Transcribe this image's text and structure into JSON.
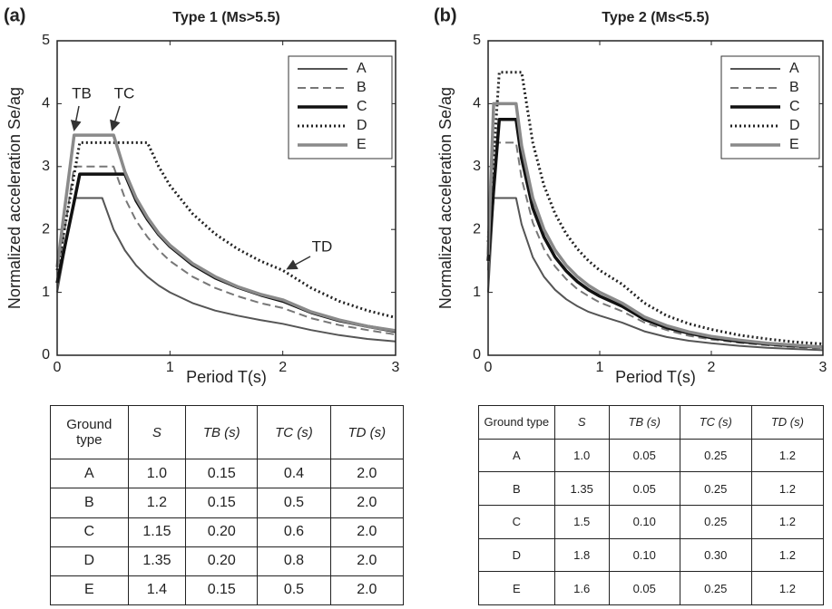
{
  "chart_data": [
    {
      "type": "line",
      "panel": "(a)",
      "title": "Type 1 (Ms>5.5)",
      "xlabel": "Period T(s)",
      "ylabel": "Normalized acceleration Se/ag",
      "x": [
        0,
        0.15,
        0.2,
        0.3,
        0.4,
        0.5,
        0.6,
        0.7,
        0.8,
        0.9,
        1.0,
        1.2,
        1.4,
        1.6,
        1.8,
        2.0,
        2.25,
        2.5,
        2.75,
        3.0
      ],
      "xlim": [
        0,
        3
      ],
      "xticks": [
        0,
        1,
        2,
        3
      ],
      "ylim": [
        0,
        5
      ],
      "yticks": [
        0,
        1,
        2,
        3,
        4,
        5
      ],
      "legend": "upper right",
      "annotations": [
        "TB",
        "TC",
        "TD"
      ],
      "series": [
        {
          "name": "A",
          "color": "#555555",
          "style": "solid",
          "values": [
            1.0,
            2.5,
            2.5,
            2.5,
            2.5,
            2.0,
            1.67,
            1.43,
            1.25,
            1.11,
            1.0,
            0.83,
            0.71,
            0.63,
            0.56,
            0.5,
            0.4,
            0.32,
            0.26,
            0.22
          ]
        },
        {
          "name": "B",
          "color": "#777777",
          "style": "dashed",
          "values": [
            1.2,
            3.0,
            3.0,
            3.0,
            3.0,
            3.0,
            2.5,
            2.14,
            1.88,
            1.67,
            1.5,
            1.25,
            1.07,
            0.94,
            0.83,
            0.75,
            0.59,
            0.48,
            0.4,
            0.33
          ]
        },
        {
          "name": "C",
          "color": "#111111",
          "style": "bold",
          "values": [
            1.15,
            2.44,
            2.88,
            2.88,
            2.88,
            2.88,
            2.88,
            2.46,
            2.16,
            1.92,
            1.73,
            1.44,
            1.23,
            1.08,
            0.96,
            0.86,
            0.68,
            0.55,
            0.46,
            0.38
          ]
        },
        {
          "name": "D",
          "color": "#222222",
          "style": "dotted",
          "values": [
            1.35,
            2.87,
            3.38,
            3.38,
            3.38,
            3.38,
            3.38,
            3.38,
            3.38,
            3.0,
            2.7,
            2.25,
            1.93,
            1.69,
            1.5,
            1.35,
            1.07,
            0.86,
            0.71,
            0.6
          ]
        },
        {
          "name": "E",
          "color": "#8a8a8a",
          "style": "bold",
          "values": [
            1.4,
            3.5,
            3.5,
            3.5,
            3.5,
            3.5,
            2.92,
            2.5,
            2.19,
            1.94,
            1.75,
            1.46,
            1.25,
            1.09,
            0.97,
            0.88,
            0.69,
            0.56,
            0.46,
            0.39
          ]
        }
      ]
    },
    {
      "type": "line",
      "panel": "(b)",
      "title": "Type 2 (Ms<5.5)",
      "xlabel": "Period T(s)",
      "ylabel": "Normalized acceleration Se/ag",
      "x": [
        0,
        0.05,
        0.1,
        0.25,
        0.3,
        0.4,
        0.5,
        0.6,
        0.7,
        0.8,
        0.9,
        1.0,
        1.2,
        1.4,
        1.6,
        1.8,
        2.0,
        2.25,
        2.5,
        2.75,
        3.0
      ],
      "xlim": [
        0,
        3
      ],
      "xticks": [
        0,
        1,
        2,
        3
      ],
      "ylim": [
        0,
        5
      ],
      "yticks": [
        0,
        1,
        2,
        3,
        4,
        5
      ],
      "legend": "upper right",
      "series": [
        {
          "name": "A",
          "color": "#555555",
          "style": "solid",
          "values": [
            1.0,
            2.5,
            2.5,
            2.5,
            2.08,
            1.56,
            1.25,
            1.04,
            0.89,
            0.78,
            0.69,
            0.63,
            0.52,
            0.38,
            0.29,
            0.23,
            0.19,
            0.15,
            0.12,
            0.1,
            0.08
          ]
        },
        {
          "name": "B",
          "color": "#777777",
          "style": "dashed",
          "values": [
            1.35,
            3.38,
            3.38,
            3.38,
            2.81,
            2.11,
            1.69,
            1.41,
            1.21,
            1.05,
            0.94,
            0.84,
            0.7,
            0.52,
            0.4,
            0.31,
            0.25,
            0.2,
            0.16,
            0.13,
            0.11
          ]
        },
        {
          "name": "C",
          "color": "#111111",
          "style": "bold",
          "values": [
            1.5,
            2.63,
            3.75,
            3.75,
            3.13,
            2.34,
            1.88,
            1.56,
            1.34,
            1.17,
            1.04,
            0.94,
            0.78,
            0.57,
            0.44,
            0.35,
            0.28,
            0.22,
            0.18,
            0.15,
            0.13
          ]
        },
        {
          "name": "D",
          "color": "#222222",
          "style": "dotted",
          "values": [
            1.8,
            3.15,
            4.5,
            4.5,
            4.5,
            3.38,
            2.7,
            2.25,
            1.93,
            1.69,
            1.5,
            1.35,
            1.13,
            0.83,
            0.63,
            0.5,
            0.41,
            0.32,
            0.26,
            0.21,
            0.18
          ]
        },
        {
          "name": "E",
          "color": "#8a8a8a",
          "style": "bold",
          "values": [
            1.6,
            4.0,
            4.0,
            4.0,
            3.33,
            2.5,
            2.0,
            1.67,
            1.43,
            1.25,
            1.11,
            1.0,
            0.83,
            0.61,
            0.47,
            0.37,
            0.3,
            0.24,
            0.19,
            0.16,
            0.13
          ]
        }
      ]
    }
  ],
  "tables": [
    {
      "header": [
        "Ground type",
        "S",
        "TB (s)",
        "TC (s)",
        "TD (s)"
      ],
      "rows": [
        [
          "A",
          "1.0",
          "0.15",
          "0.4",
          "2.0"
        ],
        [
          "B",
          "1.2",
          "0.15",
          "0.5",
          "2.0"
        ],
        [
          "C",
          "1.15",
          "0.20",
          "0.6",
          "2.0"
        ],
        [
          "D",
          "1.35",
          "0.20",
          "0.8",
          "2.0"
        ],
        [
          "E",
          "1.4",
          "0.15",
          "0.5",
          "2.0"
        ]
      ]
    },
    {
      "header": [
        "Ground type",
        "S",
        "TB (s)",
        "TC (s)",
        "TD (s)"
      ],
      "rows": [
        [
          "A",
          "1.0",
          "0.05",
          "0.25",
          "1.2"
        ],
        [
          "B",
          "1.35",
          "0.05",
          "0.25",
          "1.2"
        ],
        [
          "C",
          "1.5",
          "0.10",
          "0.25",
          "1.2"
        ],
        [
          "D",
          "1.8",
          "0.10",
          "0.30",
          "1.2"
        ],
        [
          "E",
          "1.6",
          "0.05",
          "0.25",
          "1.2"
        ]
      ]
    }
  ]
}
